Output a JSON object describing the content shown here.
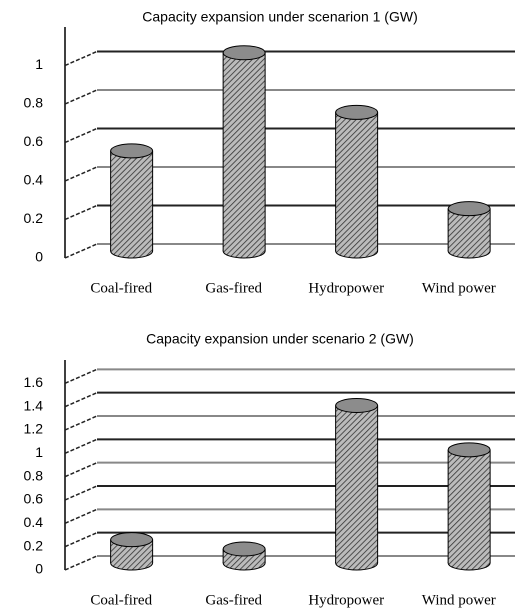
{
  "chart_data": [
    {
      "type": "bar",
      "title": "Capacity expansion under scenarion 1 (GW)",
      "categories": [
        "Coal-fired",
        "Gas-fired",
        "Hydropower",
        "Wind power"
      ],
      "values": [
        0.52,
        1.03,
        0.72,
        0.22
      ],
      "color": "#8c8c8c",
      "ylim": [
        0,
        1.2
      ],
      "yticks": [
        0,
        0.2,
        0.4,
        0.6,
        0.8,
        1
      ],
      "grid": true
    },
    {
      "type": "bar",
      "title": "Capacity expansion under scenario 2 (GW)",
      "categories": [
        "Coal-fired",
        "Gas-fired",
        "Hydropower",
        "Wind power"
      ],
      "values": [
        0.2,
        0.12,
        1.35,
        0.97
      ],
      "color": "#8c8c8c",
      "ylim": [
        0,
        1.8
      ],
      "yticks": [
        0,
        0.2,
        0.4,
        0.6,
        0.8,
        1,
        1.2,
        1.4,
        1.6
      ],
      "grid": true
    }
  ]
}
